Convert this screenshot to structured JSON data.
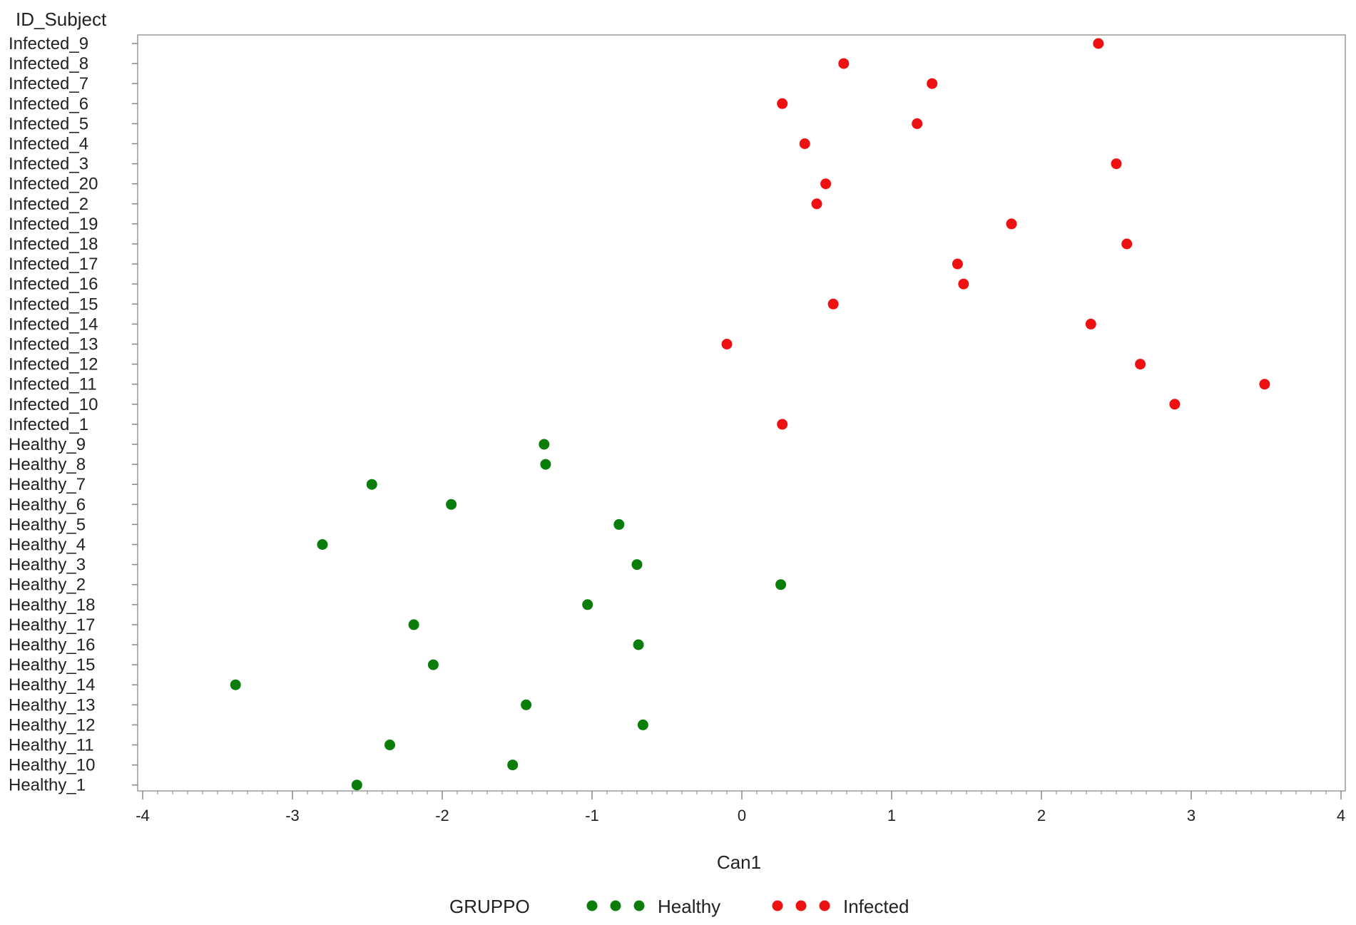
{
  "colors": {
    "Healthy": "#0a7d0a",
    "Infected": "#ee1111",
    "axis": "#888888",
    "frame": "#9a9a9a",
    "text": "#222222"
  },
  "chart_data": {
    "type": "scatter",
    "title": "",
    "xlabel": "Can1",
    "ylabel": "ID_Subject",
    "xlim": [
      -4,
      4
    ],
    "xticks": [
      -4,
      -3,
      -2,
      -1,
      0,
      1,
      2,
      3,
      4
    ],
    "grid": false,
    "legend": {
      "title": "GRUPPO",
      "position": "bottom",
      "entries": [
        "Healthy",
        "Infected"
      ]
    },
    "categories": [
      "Infected_9",
      "Infected_8",
      "Infected_7",
      "Infected_6",
      "Infected_5",
      "Infected_4",
      "Infected_3",
      "Infected_20",
      "Infected_2",
      "Infected_19",
      "Infected_18",
      "Infected_17",
      "Infected_16",
      "Infected_15",
      "Infected_14",
      "Infected_13",
      "Infected_12",
      "Infected_11",
      "Infected_10",
      "Infected_1",
      "Healthy_9",
      "Healthy_8",
      "Healthy_7",
      "Healthy_6",
      "Healthy_5",
      "Healthy_4",
      "Healthy_3",
      "Healthy_2",
      "Healthy_18",
      "Healthy_17",
      "Healthy_16",
      "Healthy_15",
      "Healthy_14",
      "Healthy_13",
      "Healthy_12",
      "Healthy_11",
      "Healthy_10",
      "Healthy_1"
    ],
    "series": [
      {
        "name": "Infected",
        "points": [
          {
            "label": "Infected_9",
            "x": 2.38
          },
          {
            "label": "Infected_8",
            "x": 0.68
          },
          {
            "label": "Infected_7",
            "x": 1.27
          },
          {
            "label": "Infected_6",
            "x": 0.27
          },
          {
            "label": "Infected_5",
            "x": 1.17
          },
          {
            "label": "Infected_4",
            "x": 0.42
          },
          {
            "label": "Infected_3",
            "x": 2.5
          },
          {
            "label": "Infected_20",
            "x": 0.56
          },
          {
            "label": "Infected_2",
            "x": 0.5
          },
          {
            "label": "Infected_19",
            "x": 1.8
          },
          {
            "label": "Infected_18",
            "x": 2.57
          },
          {
            "label": "Infected_17",
            "x": 1.44
          },
          {
            "label": "Infected_16",
            "x": 1.48
          },
          {
            "label": "Infected_15",
            "x": 0.61
          },
          {
            "label": "Infected_14",
            "x": 2.33
          },
          {
            "label": "Infected_13",
            "x": -0.1
          },
          {
            "label": "Infected_12",
            "x": 2.66
          },
          {
            "label": "Infected_11",
            "x": 3.49
          },
          {
            "label": "Infected_10",
            "x": 2.89
          },
          {
            "label": "Infected_1",
            "x": 0.27
          }
        ]
      },
      {
        "name": "Healthy",
        "points": [
          {
            "label": "Healthy_9",
            "x": -1.32
          },
          {
            "label": "Healthy_8",
            "x": -1.31
          },
          {
            "label": "Healthy_7",
            "x": -2.47
          },
          {
            "label": "Healthy_6",
            "x": -1.94
          },
          {
            "label": "Healthy_5",
            "x": -0.82
          },
          {
            "label": "Healthy_4",
            "x": -2.8
          },
          {
            "label": "Healthy_3",
            "x": -0.7
          },
          {
            "label": "Healthy_2",
            "x": 0.26
          },
          {
            "label": "Healthy_18",
            "x": -1.03
          },
          {
            "label": "Healthy_17",
            "x": -2.19
          },
          {
            "label": "Healthy_16",
            "x": -0.69
          },
          {
            "label": "Healthy_15",
            "x": -2.06
          },
          {
            "label": "Healthy_14",
            "x": -3.38
          },
          {
            "label": "Healthy_13",
            "x": -1.44
          },
          {
            "label": "Healthy_12",
            "x": -0.66
          },
          {
            "label": "Healthy_11",
            "x": -2.35
          },
          {
            "label": "Healthy_10",
            "x": -1.53
          },
          {
            "label": "Healthy_1",
            "x": -2.57
          }
        ]
      }
    ]
  }
}
